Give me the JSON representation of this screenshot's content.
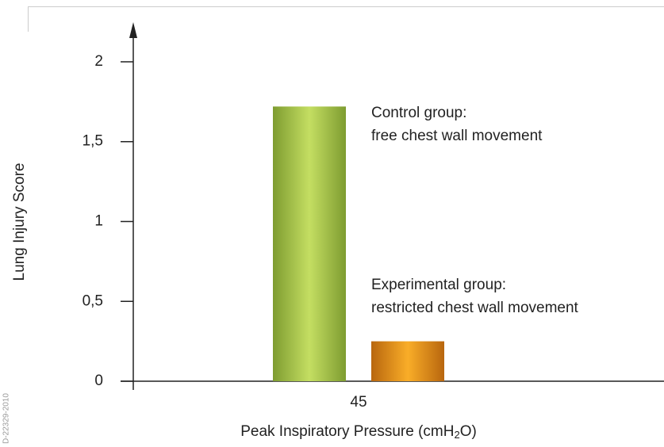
{
  "chart_data": {
    "type": "bar",
    "categories": [
      "45"
    ],
    "series": [
      {
        "name_lines": [
          "Control group:",
          "free chest wall movement"
        ],
        "color": "#a6c64a",
        "values": [
          1.72
        ]
      },
      {
        "name_lines": [
          "Experimental group:",
          "restricted chest wall movement"
        ],
        "color": "#f0a020",
        "values": [
          0.25
        ]
      }
    ],
    "ylim": [
      0,
      2.25
    ],
    "yticks": [
      0,
      {
        "value": 0.5,
        "label": "0,5"
      },
      1,
      {
        "value": 1.5,
        "label": "1,5"
      },
      2
    ],
    "y_label": "Lung Injury Score",
    "x_label": {
      "text": "Peak Inspiratory Pressure (cmH",
      "sub": "2",
      "tail": "O)"
    },
    "side_note": "D-22329-2010"
  }
}
